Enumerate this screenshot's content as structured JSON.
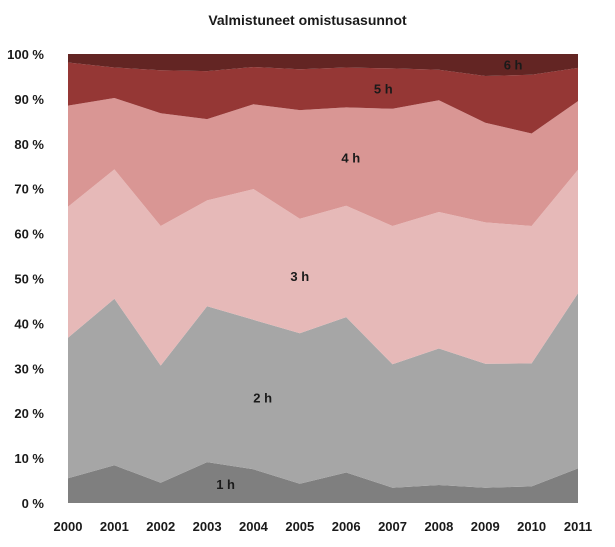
{
  "chart_data": {
    "type": "area",
    "stacked": true,
    "percent": true,
    "title": "Valmistuneet omistusasunnot",
    "xlabel": "",
    "ylabel": "",
    "categories": [
      "2000",
      "2001",
      "2002",
      "2003",
      "2004",
      "2005",
      "2006",
      "2007",
      "2008",
      "2009",
      "2010",
      "2011"
    ],
    "ylim": [
      0,
      100
    ],
    "yticks": [
      "0 %",
      "10 %",
      "20 %",
      "30 %",
      "40 %",
      "50 %",
      "60 %",
      "70 %",
      "80 %",
      "90 %",
      "100 %"
    ],
    "grid": false,
    "legend": "labels inside areas",
    "series": [
      {
        "name": "1 h",
        "color": "#7f7f7f",
        "values": [
          5.5,
          8.4,
          4.5,
          9.1,
          7.5,
          4.3,
          6.8,
          3.4,
          4.0,
          3.4,
          3.7,
          7.7
        ]
      },
      {
        "name": "2 h",
        "color": "#a6a6a6",
        "values": [
          31.3,
          37.1,
          26.1,
          34.7,
          33.3,
          33.5,
          34.6,
          27.5,
          30.4,
          27.6,
          27.4,
          39.0
        ]
      },
      {
        "name": "3 h",
        "color": "#e6b9b8",
        "values": [
          29.2,
          28.8,
          31.1,
          23.6,
          29.1,
          25.5,
          24.8,
          30.8,
          30.4,
          31.5,
          30.6,
          27.5
        ]
      },
      {
        "name": "4 h",
        "color": "#d99694",
        "values": [
          22.5,
          15.9,
          25.1,
          18.1,
          18.9,
          24.2,
          21.9,
          26.1,
          24.9,
          22.2,
          20.6,
          15.3
        ]
      },
      {
        "name": "5 h",
        "color": "#953735",
        "values": [
          9.6,
          6.8,
          9.6,
          10.7,
          8.3,
          9.1,
          8.9,
          9.0,
          6.8,
          10.4,
          13.1,
          7.4
        ]
      },
      {
        "name": "6 h",
        "color": "#632523",
        "values": [
          1.9,
          3.0,
          3.6,
          3.8,
          2.9,
          3.4,
          3.0,
          3.2,
          3.5,
          4.9,
          4.6,
          3.1
        ]
      }
    ]
  }
}
